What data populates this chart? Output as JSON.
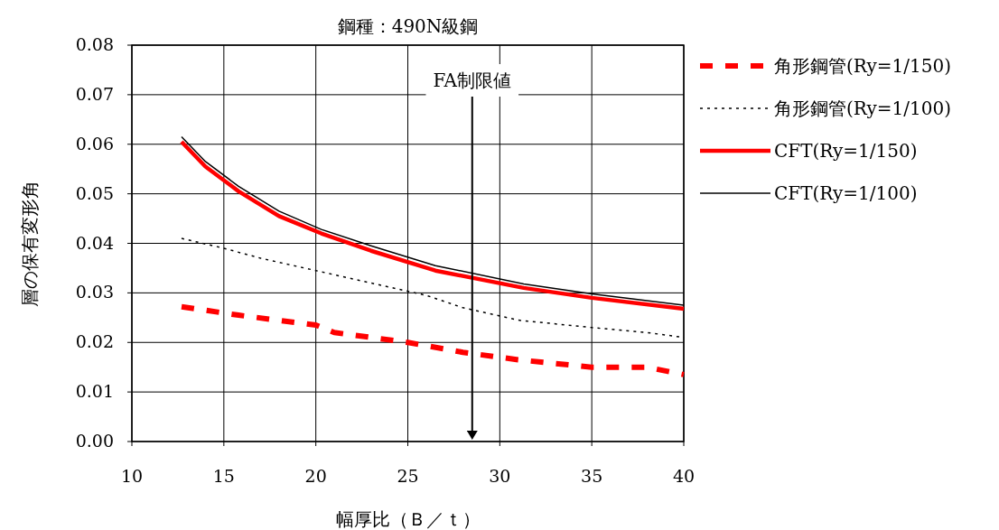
{
  "chart_data": {
    "type": "line",
    "title": "鋼種：490N級鋼",
    "xlabel": "幅厚比（Ｂ／ｔ）",
    "ylabel": "層の保有変形角",
    "xlim": [
      10,
      40
    ],
    "xticks": [
      10,
      15,
      20,
      25,
      30,
      35,
      40
    ],
    "ylim": [
      0,
      0.08
    ],
    "yticks": [
      {
        "value": 0,
        "label": "0.00"
      },
      {
        "value": 0.01,
        "label": "0.01"
      },
      {
        "value": 0.02,
        "label": "0.02"
      },
      {
        "value": 0.03,
        "label": "0.03"
      },
      {
        "value": 0.04,
        "label": "0.04"
      },
      {
        "value": 0.05,
        "label": "0.05"
      },
      {
        "value": 0.06,
        "label": "0.06"
      },
      {
        "value": 0.07,
        "label": "0.07"
      },
      {
        "value": 0.08,
        "label": "0.08"
      }
    ],
    "grid": true,
    "legend": "right",
    "ref_lines": [
      {
        "axis": "x",
        "value": 28.5,
        "label": "FA制限値",
        "color": "#000000"
      }
    ],
    "series": [
      {
        "name": "角形鋼管(Ry=1/150)",
        "color": "#ff0000",
        "line_style": "dashed",
        "x": [
          12.7,
          15.8,
          20,
          21,
          25,
          28,
          31,
          35,
          38,
          40
        ],
        "values": [
          0.0272,
          0.0255,
          0.0235,
          0.022,
          0.02,
          0.018,
          0.0165,
          0.015,
          0.015,
          0.0135
        ]
      },
      {
        "name": "角形鋼管(Ry=1/100)",
        "color": "#000000",
        "line_style": "dotted",
        "x": [
          12.7,
          15,
          17,
          20,
          23,
          26,
          28,
          31,
          35,
          38,
          40
        ],
        "values": [
          0.041,
          0.039,
          0.037,
          0.0345,
          0.032,
          0.0295,
          0.027,
          0.0245,
          0.023,
          0.022,
          0.021
        ]
      },
      {
        "name": "CFT(Ry=1/150)",
        "color": "#ff0000",
        "line_style": "solid",
        "x": [
          12.7,
          14,
          15.8,
          18,
          20.3,
          23,
          26.5,
          31.3,
          35,
          40
        ],
        "values": [
          0.0605,
          0.0555,
          0.0505,
          0.0455,
          0.042,
          0.0385,
          0.0345,
          0.031,
          0.029,
          0.0268
        ]
      },
      {
        "name": "CFT(Ry=1/100)",
        "color": "#000000",
        "line_style": "solid",
        "x": [
          12.7,
          14,
          15.8,
          18,
          20.3,
          23,
          26.5,
          31.3,
          35,
          40
        ],
        "values": [
          0.0615,
          0.0565,
          0.0515,
          0.0465,
          0.0428,
          0.0395,
          0.0355,
          0.0318,
          0.0298,
          0.0275
        ]
      }
    ]
  }
}
